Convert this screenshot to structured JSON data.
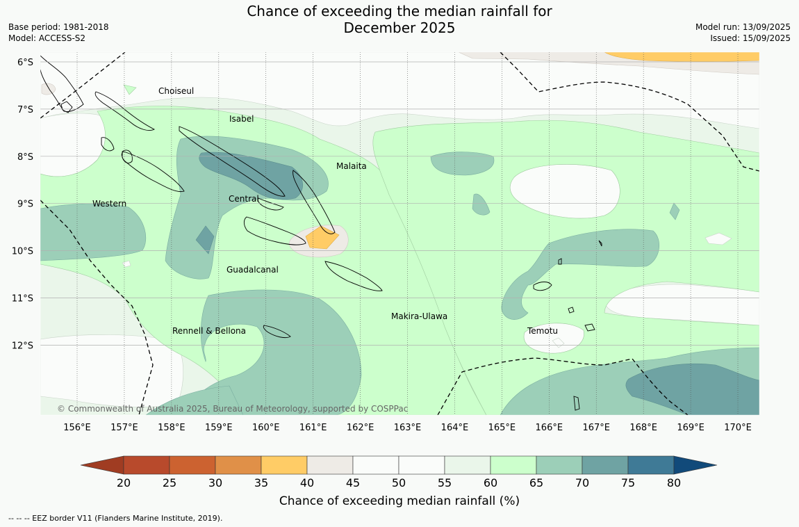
{
  "title_line1": "Chance of exceeding the median rainfall for",
  "title_line2": "December 2025",
  "meta_left": {
    "base_period": "Base period: 1981-2018",
    "model": "Model: ACCESS-S2"
  },
  "meta_right": {
    "model_run": "Model run: 13/09/2025",
    "issued": "Issued: 15/09/2025"
  },
  "lat_labels": [
    "6°S",
    "7°S",
    "8°S",
    "9°S",
    "10°S",
    "11°S",
    "12°S"
  ],
  "lon_labels": [
    "156°E",
    "157°E",
    "158°E",
    "159°E",
    "160°E",
    "161°E",
    "162°E",
    "163°E",
    "164°E",
    "165°E",
    "166°E",
    "167°E",
    "168°E",
    "169°E",
    "170°E"
  ],
  "regions": {
    "choiseul": "Choiseul",
    "isabel": "Isabel",
    "malaita": "Malaita",
    "western": "Western",
    "central": "Central",
    "guadalcanal": "Guadalcanal",
    "makira": "Makira-Ulawa",
    "rennell": "Rennell & Bellona",
    "temotu": "Temotu"
  },
  "copyright": "© Commonwealth of Australia 2025, Bureau of Meteorology, supported by COSPPac",
  "colorbar": {
    "ticks": [
      "20",
      "25",
      "30",
      "35",
      "40",
      "45",
      "50",
      "55",
      "60",
      "65",
      "70",
      "75",
      "80"
    ],
    "colors": [
      "#a03c22",
      "#b84a2c",
      "#cc6230",
      "#e09048",
      "#ffcc66",
      "#eeebe6",
      "#fafcfa",
      "#fafcfa",
      "#eaf6ea",
      "#ccffcc",
      "#9ccfb8",
      "#6fa3a3",
      "#3f7a96",
      "#114a7a"
    ],
    "label": "Chance of exceeding median rainfall (%)"
  },
  "footer": "--  --  -- EEZ border V11 (Flanders Marine Institute, 2019)."
}
